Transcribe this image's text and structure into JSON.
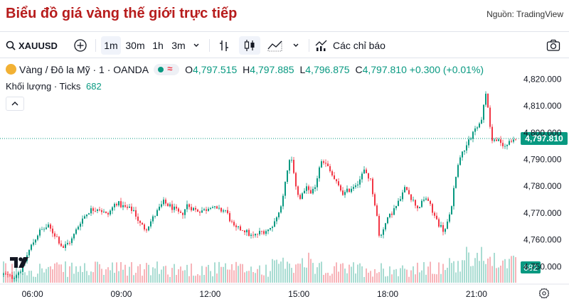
{
  "page": {
    "title": "Biểu đồ giá vàng thế giới trực tiếp",
    "source": "Nguồn: TradingView"
  },
  "toolbar": {
    "symbol": "XAUUSD",
    "intervals": [
      "1m",
      "30m",
      "1h",
      "3m"
    ],
    "active_interval": "1m",
    "indicators_label": "Các chỉ báo"
  },
  "legend": {
    "name": "Vàng / Đô la Mỹ · 1 · OANDA",
    "approx_symbol": "≈",
    "o_label": "O",
    "o_value": "4,797.515",
    "h_label": "H",
    "h_value": "4,797.885",
    "l_label": "L",
    "l_value": "4,796.875",
    "c_label": "C",
    "c_value": "4,797.810",
    "change": "+0.300 (+0.01%)",
    "volume_label": "Khối lượng · Ticks",
    "volume_value": "682"
  },
  "colors": {
    "up": "#089981",
    "down": "#f23645",
    "up_volume": "#a9dcd2",
    "down_volume": "#f7b4b9",
    "title": "#b71c1c"
  },
  "chart_data": {
    "type": "candlestick",
    "symbol": "XAUUSD",
    "interval": "1m",
    "current_price_label": "4,797.810",
    "current_price": 4797.81,
    "volume_label": "682",
    "ylim": [
      4744,
      4823
    ],
    "y_ticks": [
      "4,750.000",
      "4,760.000",
      "4,770.000",
      "4,780.000",
      "4,790.000",
      "4,800.000",
      "4,810.000",
      "4,820.000"
    ],
    "y_tick_values": [
      4750,
      4760,
      4770,
      4780,
      4790,
      4800,
      4810,
      4820
    ],
    "x_ticks": [
      "06:00",
      "09:00",
      "12:00",
      "15:00",
      "18:00",
      "21:00"
    ],
    "x_tick_hours": [
      6,
      9,
      12,
      15,
      18,
      21
    ],
    "xlim_hours": [
      5.0,
      22.3
    ],
    "price_path": [
      [
        5.0,
        4747
      ],
      [
        5.3,
        4746
      ],
      [
        5.6,
        4749
      ],
      [
        5.9,
        4757
      ],
      [
        6.2,
        4763
      ],
      [
        6.5,
        4765
      ],
      [
        6.8,
        4761
      ],
      [
        7.0,
        4757
      ],
      [
        7.3,
        4760
      ],
      [
        7.6,
        4767
      ],
      [
        7.9,
        4771
      ],
      [
        8.2,
        4772
      ],
      [
        8.5,
        4769
      ],
      [
        8.8,
        4774
      ],
      [
        9.1,
        4772
      ],
      [
        9.4,
        4771
      ],
      [
        9.6,
        4766
      ],
      [
        9.8,
        4764
      ],
      [
        10.1,
        4769
      ],
      [
        10.4,
        4774
      ],
      [
        10.7,
        4772
      ],
      [
        11.0,
        4769
      ],
      [
        11.2,
        4773
      ],
      [
        11.5,
        4771
      ],
      [
        11.8,
        4771
      ],
      [
        12.0,
        4773
      ],
      [
        12.2,
        4771
      ],
      [
        12.5,
        4771
      ],
      [
        12.8,
        4764
      ],
      [
        13.1,
        4764
      ],
      [
        13.4,
        4761
      ],
      [
        13.7,
        4763
      ],
      [
        14.0,
        4764
      ],
      [
        14.3,
        4770
      ],
      [
        14.5,
        4780
      ],
      [
        14.7,
        4792
      ],
      [
        14.8,
        4784
      ],
      [
        15.0,
        4775
      ],
      [
        15.2,
        4779
      ],
      [
        15.5,
        4778
      ],
      [
        15.7,
        4789
      ],
      [
        15.9,
        4788
      ],
      [
        16.1,
        4784
      ],
      [
        16.3,
        4780
      ],
      [
        16.5,
        4777
      ],
      [
        16.7,
        4779
      ],
      [
        17.0,
        4782
      ],
      [
        17.2,
        4786
      ],
      [
        17.4,
        4782
      ],
      [
        17.6,
        4770
      ],
      [
        17.7,
        4760
      ],
      [
        17.8,
        4764
      ],
      [
        17.9,
        4766
      ],
      [
        18.1,
        4770
      ],
      [
        18.3,
        4773
      ],
      [
        18.6,
        4780
      ],
      [
        18.8,
        4775
      ],
      [
        19.0,
        4772
      ],
      [
        19.3,
        4776
      ],
      [
        19.5,
        4770
      ],
      [
        19.7,
        4766
      ],
      [
        19.9,
        4763
      ],
      [
        20.1,
        4770
      ],
      [
        20.3,
        4786
      ],
      [
        20.5,
        4793
      ],
      [
        20.7,
        4797
      ],
      [
        20.9,
        4801
      ],
      [
        21.1,
        4803
      ],
      [
        21.3,
        4815
      ],
      [
        21.4,
        4806
      ],
      [
        21.5,
        4797
      ],
      [
        21.7,
        4797
      ],
      [
        21.9,
        4795
      ],
      [
        22.1,
        4796
      ],
      [
        22.3,
        4797.8
      ]
    ]
  }
}
